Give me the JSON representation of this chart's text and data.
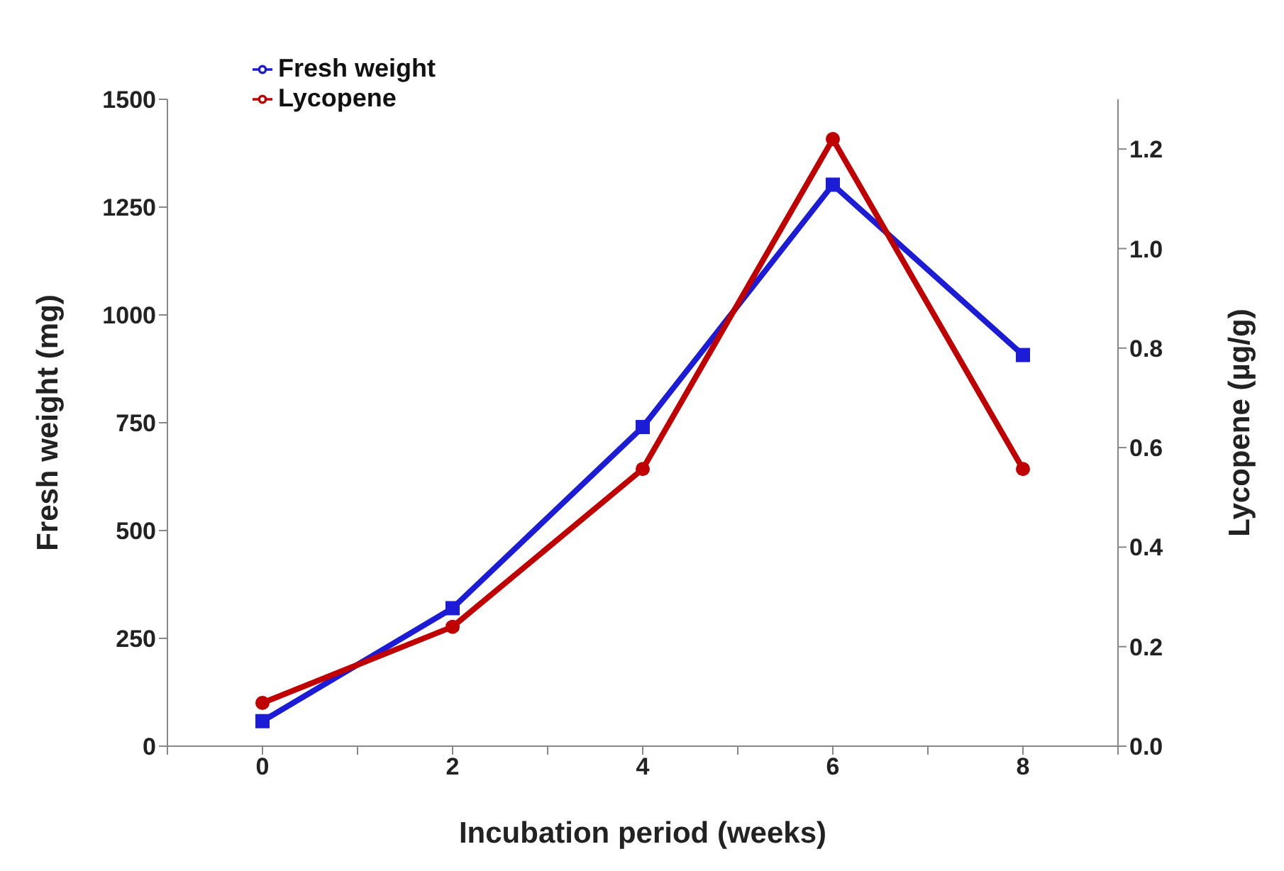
{
  "chart_data": {
    "type": "line",
    "xlabel": "Incubation period (weeks)",
    "ylabel": "Fresh weight (mg)",
    "y2label": "Lycopene (µg/g)",
    "x": [
      0,
      2,
      4,
      6,
      8
    ],
    "series": [
      {
        "name": "Fresh weight",
        "color": "#1c1cd6",
        "marker": "square",
        "values": [
          58,
          320,
          740,
          1302,
          907
        ]
      },
      {
        "name": "Lycopene",
        "color": "#c00000",
        "marker": "circle",
        "axis": "y2",
        "values": [
          0.087,
          0.24,
          0.557,
          1.22,
          0.557
        ]
      }
    ],
    "xlim": [
      -1,
      9
    ],
    "xticks": [
      {
        "value": -1,
        "label": null
      },
      0,
      {
        "value": 1,
        "label": null
      },
      2,
      {
        "value": 3,
        "label": null
      },
      4,
      {
        "value": 5,
        "label": null
      },
      6,
      {
        "value": 7,
        "label": null
      },
      8,
      {
        "value": 9,
        "label": null
      }
    ],
    "ylim": [
      0,
      1500
    ],
    "yticks": [
      0,
      250,
      500,
      750,
      1000,
      1250,
      1500
    ],
    "y2lim": [
      0,
      1.3
    ],
    "y2ticks": [
      {
        "value": 0,
        "label": "0.0"
      },
      0.2,
      0.4,
      0.6,
      0.8,
      {
        "value": 1,
        "label": "1.0"
      },
      1.2
    ],
    "grid": false,
    "legend": "top left",
    "line_style": "solid"
  }
}
